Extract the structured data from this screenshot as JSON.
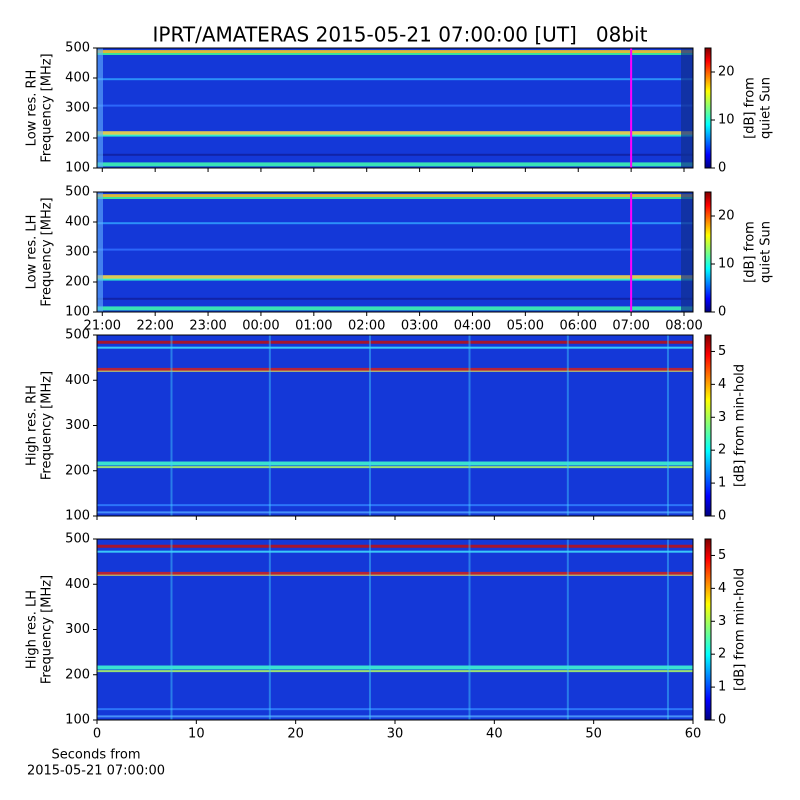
{
  "chart_data": [
    {
      "type": "spectrogram",
      "title": "IPRT/AMATERAS 2015-05-21 07:00:00 [UT]   08bit",
      "ylabel": [
        "Low res. RH",
        "Frequency [MHz]"
      ],
      "ylim": [
        100,
        500
      ],
      "yticks": [
        100,
        200,
        300,
        400,
        500
      ],
      "xlim": [
        20.9,
        32.17
      ],
      "xticks": [
        21,
        22,
        23,
        24,
        25,
        26,
        27,
        28,
        29,
        30,
        31,
        32
      ],
      "xtick_labels": false,
      "vline": {
        "x": 31,
        "color": "#ff00ff"
      },
      "colormap": "jet",
      "colorbar": {
        "lim": [
          0,
          25
        ],
        "ticks": [
          0,
          10,
          20
        ],
        "label": [
          "[dB] from",
          "quiet Sun"
        ]
      }
    },
    {
      "type": "spectrogram",
      "ylabel": [
        "Low res. LH",
        "Frequency [MHz]"
      ],
      "ylim": [
        100,
        500
      ],
      "yticks": [
        100,
        200,
        300,
        400,
        500
      ],
      "xlim": [
        20.9,
        32.17
      ],
      "xticks": [
        {
          "value": 21,
          "label": "21:00"
        },
        {
          "value": 22,
          "label": "22:00"
        },
        {
          "value": 23,
          "label": "23:00"
        },
        {
          "value": 24,
          "label": "00:00"
        },
        {
          "value": 25,
          "label": "01:00"
        },
        {
          "value": 26,
          "label": "02:00"
        },
        {
          "value": 27,
          "label": "03:00"
        },
        {
          "value": 28,
          "label": "04:00"
        },
        {
          "value": 29,
          "label": "05:00"
        },
        {
          "value": 30,
          "label": "06:00"
        },
        {
          "value": 31,
          "label": "07:00"
        },
        {
          "value": 32,
          "label": "08:00"
        }
      ],
      "xtick_labels": true,
      "vline": {
        "x": 31,
        "color": "#ff00ff"
      },
      "colormap": "jet",
      "colorbar": {
        "lim": [
          0,
          25
        ],
        "ticks": [
          0,
          10,
          20
        ],
        "label": [
          "[dB] from",
          "quiet Sun"
        ]
      }
    },
    {
      "type": "spectrogram",
      "ylabel": [
        "High res. RH",
        "Frequency [MHz]"
      ],
      "ylim": [
        100,
        500
      ],
      "yticks": [
        100,
        200,
        300,
        400,
        500
      ],
      "xlim": [
        0,
        60
      ],
      "xticks": [
        0,
        10,
        20,
        30,
        40,
        50,
        60
      ],
      "xtick_labels": false,
      "colormap": "jet",
      "colorbar": {
        "lim": [
          0,
          5.5
        ],
        "ticks": [
          0,
          1,
          2,
          3,
          4,
          5
        ],
        "label": [
          "[dB] from min-hold"
        ]
      }
    },
    {
      "type": "spectrogram",
      "ylabel": [
        "High res. LH",
        "Frequency [MHz]"
      ],
      "ylim": [
        100,
        500
      ],
      "yticks": [
        100,
        200,
        300,
        400,
        500
      ],
      "xlim": [
        0,
        60
      ],
      "xticks": [
        0,
        10,
        20,
        30,
        40,
        50,
        60
      ],
      "xtick_labels": true,
      "xlabel": [
        "Seconds from",
        "2015-05-21 07:00:00"
      ],
      "colormap": "jet",
      "colorbar": {
        "lim": [
          0,
          5.5
        ],
        "ticks": [
          0,
          1,
          2,
          3,
          4,
          5
        ],
        "label": [
          "[dB] from min-hold"
        ]
      }
    }
  ]
}
